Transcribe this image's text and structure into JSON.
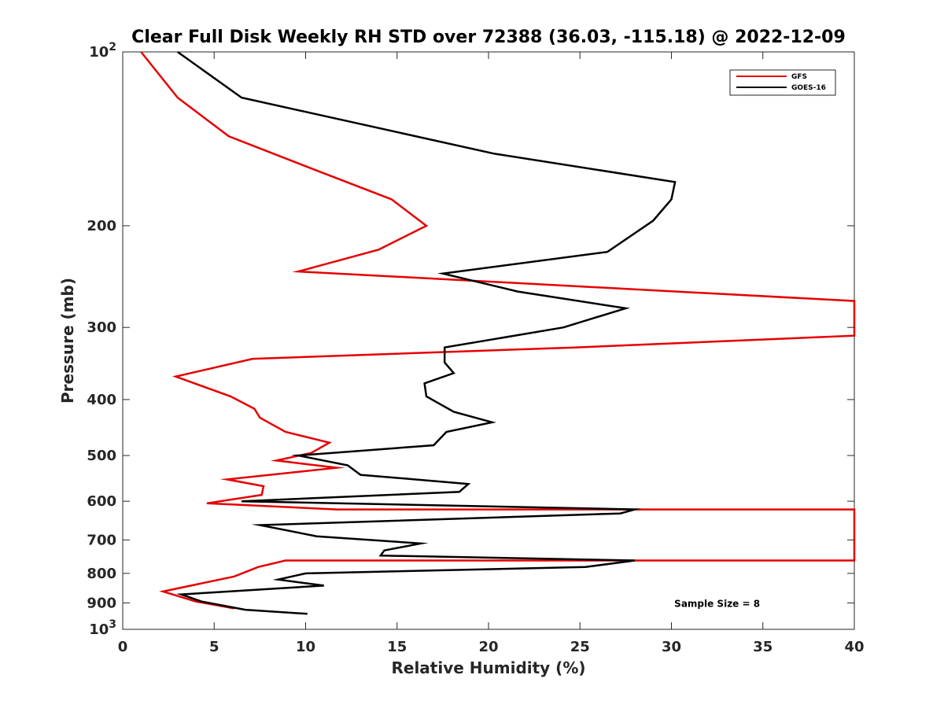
{
  "chart_data": {
    "type": "line",
    "title": "Clear Full Disk Weekly RH STD over 72388 (36.03, -115.18) @ 2022-12-09",
    "xlabel": "Relative Humidity (%)",
    "ylabel": "Pressure (mb)",
    "xlim": [
      0,
      40
    ],
    "ylim": [
      100,
      1000
    ],
    "yscale": "log",
    "y_reversed": true,
    "grid": false,
    "legend_position": "top-right",
    "x_ticks": [
      "0",
      "5",
      "10",
      "15",
      "20",
      "25",
      "30",
      "35",
      "40"
    ],
    "y_ticks": [
      {
        "value": 100,
        "label": "10",
        "sup": "2"
      },
      {
        "value": 200,
        "label": "200",
        "sup": ""
      },
      {
        "value": 300,
        "label": "300",
        "sup": ""
      },
      {
        "value": 400,
        "label": "400",
        "sup": ""
      },
      {
        "value": 500,
        "label": "500",
        "sup": ""
      },
      {
        "value": 600,
        "label": "600",
        "sup": ""
      },
      {
        "value": 700,
        "label": "700",
        "sup": ""
      },
      {
        "value": 800,
        "label": "800",
        "sup": ""
      },
      {
        "value": 900,
        "label": "900",
        "sup": ""
      },
      {
        "value": 1000,
        "label": "10",
        "sup": "3"
      }
    ],
    "series": [
      {
        "name": "GFS",
        "color": "#e50000",
        "rh": [
          1.0,
          3.0,
          5.8,
          10.5,
          14.7,
          16.6,
          14.0,
          9.6,
          40.0,
          40.0,
          24.7,
          7.1,
          2.9,
          5.9,
          7.2,
          7.5,
          8.9,
          11.3,
          10.3,
          8.4,
          11.7,
          5.7,
          7.7,
          7.6,
          4.6,
          11.7,
          40.0,
          40.0,
          8.9,
          7.4,
          6.1,
          2.2,
          4.0,
          6.1
        ],
        "pressure": [
          100,
          120,
          140,
          160,
          180,
          200,
          220,
          240,
          270,
          310,
          325,
          340,
          365,
          395,
          415,
          430,
          455,
          475,
          495,
          510,
          525,
          550,
          565,
          585,
          605,
          620,
          620,
          760,
          760,
          780,
          810,
          860,
          895,
          920
        ]
      },
      {
        "name": "GOES-16",
        "color": "#000000",
        "rh": [
          3.0,
          6.5,
          20.3,
          30.2,
          30.0,
          29.0,
          26.5,
          17.5,
          21.6,
          27.5,
          24.1,
          17.6,
          17.6,
          18.1,
          16.5,
          16.6,
          18.1,
          20.2,
          17.7,
          17.0,
          9.6,
          12.3,
          13.0,
          18.9,
          18.4,
          6.5,
          28.0,
          27.2,
          7.5,
          10.6,
          16.3,
          14.3,
          14.1,
          28.0,
          25.3,
          10.0,
          8.5,
          11.0,
          3.2,
          4.3,
          6.7,
          10.1
        ],
        "pressure": [
          100,
          120,
          150,
          168,
          180,
          196,
          222,
          242,
          260,
          278,
          300,
          325,
          345,
          360,
          375,
          395,
          420,
          438,
          455,
          480,
          500,
          520,
          540,
          560,
          578,
          600,
          620,
          630,
          660,
          690,
          710,
          730,
          745,
          760,
          780,
          800,
          820,
          840,
          870,
          895,
          925,
          940
        ]
      }
    ],
    "annotations": [
      {
        "text": "Sample Size = 8",
        "x": 32.5,
        "y": 900
      }
    ]
  }
}
